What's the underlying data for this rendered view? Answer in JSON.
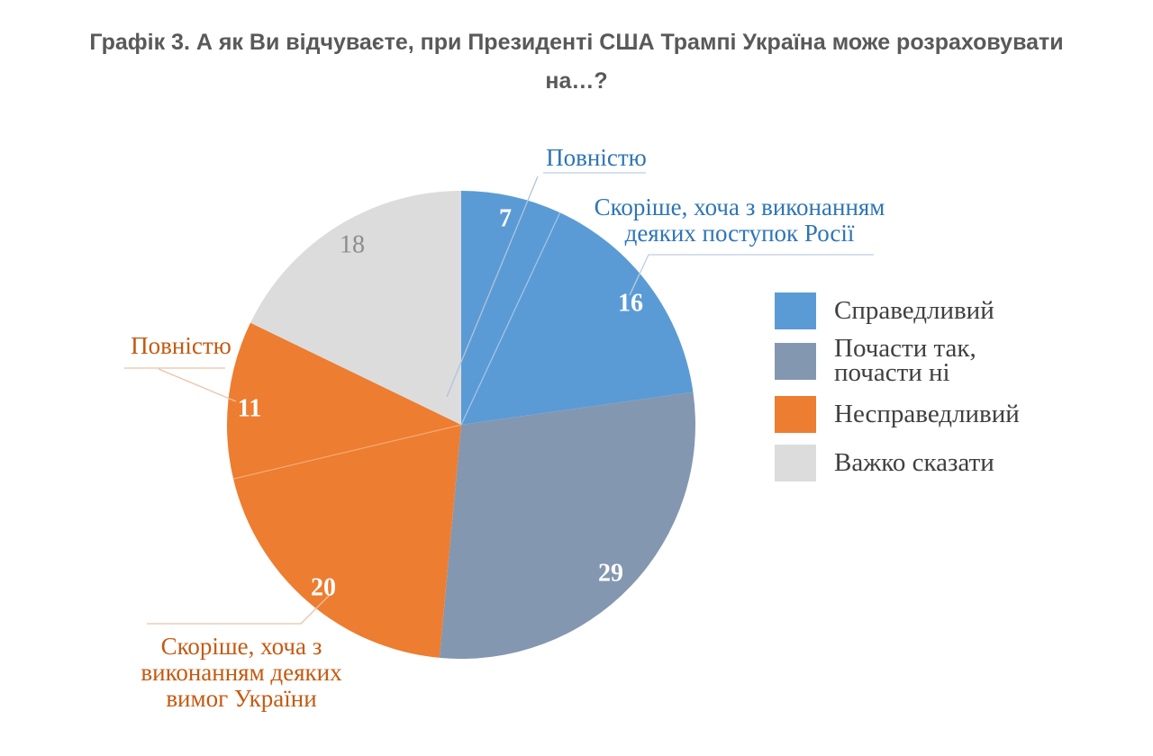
{
  "title": {
    "line1": "Графік 3. А як Ви відчуваєте, при Президенті США Трампі Україна може розраховувати",
    "line2": "на…?"
  },
  "chart_data": {
    "type": "pie",
    "title": "Графік 3. А як Ви відчуваєте, при Президенті США Трампі Україна може розраховувати на…?",
    "unit": "percent",
    "start_angle": "top",
    "direction": "clockwise",
    "legend_position": "right",
    "slices": [
      {
        "group": "Справедливий",
        "detail": "Повністю",
        "value": 7,
        "color": "#5B9BD5",
        "value_color": "#FFFFFF"
      },
      {
        "group": "Справедливий",
        "detail": "Скоріше, хоча з виконанням деяких поступок Росії",
        "value": 16,
        "color": "#5B9BD5",
        "value_color": "#FFFFFF"
      },
      {
        "group": "Почасти так, почасти ні",
        "value": 29,
        "color": "#8497B0",
        "value_color": "#FFFFFF"
      },
      {
        "group": "Несправедливий",
        "detail": "Скоріше, хоча з виконанням деяких вимог України",
        "value": 20,
        "color": "#ED7D31",
        "value_color": "#FFFFFF"
      },
      {
        "group": "Несправедливий",
        "detail": "Повністю",
        "value": 11,
        "color": "#ED7D31",
        "value_color": "#FFFFFF"
      },
      {
        "group": "Важко сказати",
        "value": 18,
        "color": "#DCDCDC",
        "value_color": "#8C8C8C"
      }
    ]
  },
  "callouts": {
    "top_blue": {
      "text": "Повністю",
      "color": "#2E75B6"
    },
    "right_blue": {
      "text": "Скоріше, хоча з виконанням\nдеяких поступок Росії",
      "color": "#2E75B6"
    },
    "left_orange": {
      "text": "Повністю",
      "color": "#C55A11"
    },
    "bottom_orange": {
      "text": "Скоріше, хоча з\nвиконанням деяких\nвимог України",
      "color": "#C55A11"
    }
  },
  "legend": {
    "items": [
      {
        "label": "Справедливий",
        "color": "#5B9BD5"
      },
      {
        "label": "Почасти так,\nпочасти ні",
        "color": "#8497B0"
      },
      {
        "label": "Несправедливий",
        "color": "#ED7D31"
      },
      {
        "label": "Важко сказати",
        "color": "#DCDCDC"
      }
    ]
  }
}
